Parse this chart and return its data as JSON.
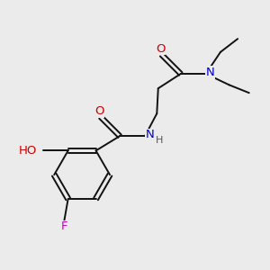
{
  "background_color": "#ebebeb",
  "figsize": [
    3.0,
    3.0
  ],
  "dpi": 100,
  "atom_colors": {
    "C": "#000000",
    "N": "#0000cc",
    "O": "#cc0000",
    "F": "#cc00cc",
    "H": "#555555"
  },
  "bond_color": "#111111",
  "bond_width": 1.4,
  "font_size": 9.5
}
